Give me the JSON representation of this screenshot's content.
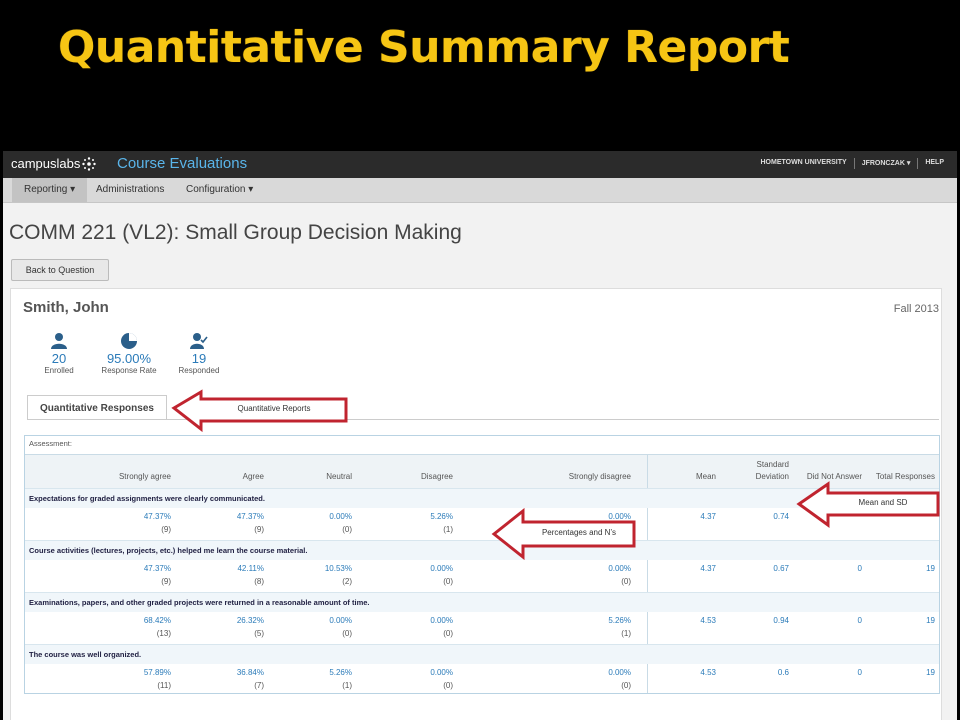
{
  "slide": {
    "title": "Quantitative Summary Report"
  },
  "app": {
    "brand": "campuslabs",
    "product": "Course Evaluations",
    "top_right": {
      "institution": "HOMETOWN UNIVERSITY",
      "user": "JFRONCZAK ▾",
      "help": "HELP"
    }
  },
  "menu": {
    "reporting": "Reporting ▾",
    "administrations": "Administrations",
    "configuration": "Configuration ▾"
  },
  "page": {
    "course_title": "COMM 221 (VL2): Small Group Decision Making",
    "back_button": "Back to Question",
    "instructor": "Smith, John",
    "term": "Fall 2013"
  },
  "stats": {
    "enrolled": {
      "value": "20",
      "label": "Enrolled"
    },
    "response_rate": {
      "value": "95.00%",
      "label": "Response Rate"
    },
    "responded": {
      "value": "19",
      "label": "Responded"
    }
  },
  "tab": {
    "label": "Quantitative Responses"
  },
  "callouts": {
    "reports": "Quantitative Reports",
    "mean_sd": "Mean and SD",
    "percentages": "Percentages and N’s"
  },
  "table": {
    "section": "Assessment:",
    "headers": {
      "strongly_agree": "Strongly agree",
      "agree": "Agree",
      "neutral": "Neutral",
      "disagree": "Disagree",
      "strongly_disagree": "Strongly disagree",
      "mean": "Mean",
      "sd_line1": "Standard",
      "sd_line2": "Deviation",
      "did_not_answer": "Did Not Answer",
      "total": "Total Responses"
    },
    "questions": [
      {
        "text": "Expectations for graded assignments were clearly communicated.",
        "sa": "47.37%",
        "sa_n": "(9)",
        "a": "47.37%",
        "a_n": "(9)",
        "ne": "0.00%",
        "ne_n": "(0)",
        "d": "5.26%",
        "d_n": "(1)",
        "sd": "0.00%",
        "sd_n": "(0)",
        "mean": "4.37",
        "stdev": "0.74",
        "dna": "",
        "total": ""
      },
      {
        "text": "Course activities (lectures, projects, etc.) helped me learn the course material.",
        "sa": "47.37%",
        "sa_n": "(9)",
        "a": "42.11%",
        "a_n": "(8)",
        "ne": "10.53%",
        "ne_n": "(2)",
        "d": "0.00%",
        "d_n": "(0)",
        "sd": "0.00%",
        "sd_n": "(0)",
        "mean": "4.37",
        "stdev": "0.67",
        "dna": "0",
        "total": "19"
      },
      {
        "text": "Examinations, papers, and other graded projects were returned in a reasonable amount of time.",
        "sa": "68.42%",
        "sa_n": "(13)",
        "a": "26.32%",
        "a_n": "(5)",
        "ne": "0.00%",
        "ne_n": "(0)",
        "d": "0.00%",
        "d_n": "(0)",
        "sd": "5.26%",
        "sd_n": "(1)",
        "mean": "4.53",
        "stdev": "0.94",
        "dna": "0",
        "total": "19"
      },
      {
        "text": "The course was well organized.",
        "sa": "57.89%",
        "sa_n": "(11)",
        "a": "36.84%",
        "a_n": "(7)",
        "ne": "5.26%",
        "ne_n": "(1)",
        "d": "0.00%",
        "d_n": "(0)",
        "sd": "0.00%",
        "sd_n": "(0)",
        "mean": "4.53",
        "stdev": "0.6",
        "dna": "0",
        "total": "19"
      }
    ]
  },
  "colors": {
    "title_gold": "#f6c514",
    "brand_blue": "#5ab5ea",
    "value_blue": "#2b7bb9",
    "callout_red": "#c0242f"
  }
}
